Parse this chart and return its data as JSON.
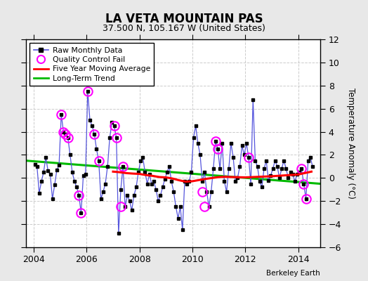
{
  "title": "LA VETA MOUNTAIN PAS",
  "subtitle": "37.500 N, 105.167 W (United States)",
  "ylabel": "Temperature Anomaly (°C)",
  "credit": "Berkeley Earth",
  "xlim": [
    2003.7,
    2014.83
  ],
  "ylim": [
    -6,
    12
  ],
  "yticks": [
    -6,
    -4,
    -2,
    0,
    2,
    4,
    6,
    8,
    10,
    12
  ],
  "xticks": [
    2004,
    2006,
    2008,
    2010,
    2012,
    2014
  ],
  "fig_bg": "#e8e8e8",
  "plot_bg": "#ffffff",
  "raw_x": [
    2004.042,
    2004.125,
    2004.208,
    2004.292,
    2004.375,
    2004.458,
    2004.542,
    2004.625,
    2004.708,
    2004.792,
    2004.875,
    2004.958,
    2005.042,
    2005.125,
    2005.208,
    2005.292,
    2005.375,
    2005.458,
    2005.542,
    2005.625,
    2005.708,
    2005.792,
    2005.875,
    2005.958,
    2006.042,
    2006.125,
    2006.208,
    2006.292,
    2006.375,
    2006.458,
    2006.542,
    2006.625,
    2006.708,
    2006.792,
    2006.875,
    2006.958,
    2007.042,
    2007.125,
    2007.208,
    2007.292,
    2007.375,
    2007.458,
    2007.542,
    2007.625,
    2007.708,
    2007.792,
    2007.875,
    2007.958,
    2008.042,
    2008.125,
    2008.208,
    2008.292,
    2008.375,
    2008.458,
    2008.542,
    2008.625,
    2008.708,
    2008.792,
    2008.875,
    2008.958,
    2009.042,
    2009.125,
    2009.208,
    2009.292,
    2009.375,
    2009.458,
    2009.542,
    2009.625,
    2009.708,
    2009.792,
    2009.875,
    2009.958,
    2010.042,
    2010.125,
    2010.208,
    2010.292,
    2010.375,
    2010.458,
    2010.542,
    2010.625,
    2010.708,
    2010.792,
    2010.875,
    2010.958,
    2011.042,
    2011.125,
    2011.208,
    2011.292,
    2011.375,
    2011.458,
    2011.542,
    2011.625,
    2011.708,
    2011.792,
    2011.875,
    2011.958,
    2012.042,
    2012.125,
    2012.208,
    2012.292,
    2012.375,
    2012.458,
    2012.542,
    2012.625,
    2012.708,
    2012.792,
    2012.875,
    2012.958,
    2013.042,
    2013.125,
    2013.208,
    2013.292,
    2013.375,
    2013.458,
    2013.542,
    2013.625,
    2013.708,
    2013.792,
    2013.875,
    2013.958,
    2014.042,
    2014.125,
    2014.208,
    2014.292,
    2014.375,
    2014.458,
    2014.542
  ],
  "raw_y": [
    1.2,
    1.0,
    -1.3,
    -0.3,
    0.5,
    1.8,
    0.6,
    0.3,
    -1.8,
    -0.6,
    0.7,
    1.1,
    5.5,
    4.0,
    3.8,
    3.5,
    2.0,
    0.5,
    -0.3,
    -0.8,
    -1.5,
    -3.0,
    0.2,
    0.3,
    7.5,
    5.0,
    4.5,
    3.8,
    2.5,
    1.5,
    -1.8,
    -1.2,
    -0.5,
    1.0,
    3.5,
    4.8,
    4.5,
    3.5,
    -4.8,
    -1.0,
    1.0,
    -2.5,
    -1.5,
    -2.0,
    -2.8,
    -1.5,
    -0.8,
    0.5,
    1.5,
    1.8,
    0.5,
    -0.5,
    0.3,
    -0.5,
    -0.3,
    -1.0,
    -2.0,
    -1.5,
    -0.8,
    -0.1,
    0.5,
    1.0,
    -0.3,
    -1.2,
    -2.5,
    -3.5,
    -2.5,
    -4.5,
    -0.3,
    -0.5,
    -0.3,
    0.5,
    3.5,
    4.5,
    3.0,
    2.0,
    -0.3,
    0.5,
    -1.2,
    -2.5,
    -1.2,
    0.8,
    3.2,
    2.5,
    0.8,
    3.0,
    -0.3,
    -1.2,
    0.8,
    3.0,
    1.8,
    -0.3,
    0.0,
    1.0,
    2.8,
    2.0,
    3.0,
    1.8,
    -0.5,
    6.8,
    1.5,
    1.0,
    -0.3,
    -0.8,
    0.8,
    1.5,
    -0.2,
    0.2,
    0.8,
    1.5,
    1.0,
    0.0,
    0.8,
    1.5,
    0.8,
    0.0,
    0.5,
    0.3,
    -0.3,
    0.3,
    0.5,
    0.8,
    -0.5,
    -1.8,
    1.5,
    1.8,
    1.0
  ],
  "qc_fail_x": [
    2005.042,
    2005.125,
    2005.208,
    2005.292,
    2005.708,
    2005.792,
    2006.042,
    2006.292,
    2006.458,
    2007.042,
    2007.125,
    2007.292,
    2007.375,
    2010.375,
    2010.458,
    2010.875,
    2010.958,
    2012.125,
    2014.125,
    2014.208,
    2014.292
  ],
  "qc_fail_y": [
    5.5,
    4.0,
    3.8,
    3.5,
    -1.5,
    -3.0,
    7.5,
    3.8,
    1.5,
    4.5,
    3.5,
    -2.5,
    1.0,
    -1.2,
    -2.5,
    3.2,
    2.5,
    1.8,
    0.8,
    -0.5,
    -1.8
  ],
  "ma_x": [
    2007.0,
    2007.25,
    2007.5,
    2007.75,
    2008.0,
    2008.25,
    2008.5,
    2008.75,
    2009.0,
    2009.25,
    2009.5,
    2009.75,
    2010.0,
    2010.25,
    2010.5,
    2010.75,
    2011.0,
    2011.25,
    2011.5,
    2012.0,
    2013.0,
    2014.0,
    2014.5
  ],
  "ma_y": [
    0.55,
    0.5,
    0.42,
    0.38,
    0.35,
    0.25,
    0.18,
    0.08,
    0.05,
    -0.05,
    -0.2,
    -0.32,
    -0.28,
    -0.18,
    -0.08,
    0.0,
    0.08,
    0.1,
    0.08,
    0.05,
    0.15,
    0.3,
    0.55
  ],
  "trend_x": [
    2003.7,
    2014.83
  ],
  "trend_y": [
    1.5,
    -0.5
  ],
  "line_color": "#5555dd",
  "dot_color": "#000000",
  "qc_color": "#ff00ff",
  "ma_color": "#ff0000",
  "trend_color": "#00bb00"
}
